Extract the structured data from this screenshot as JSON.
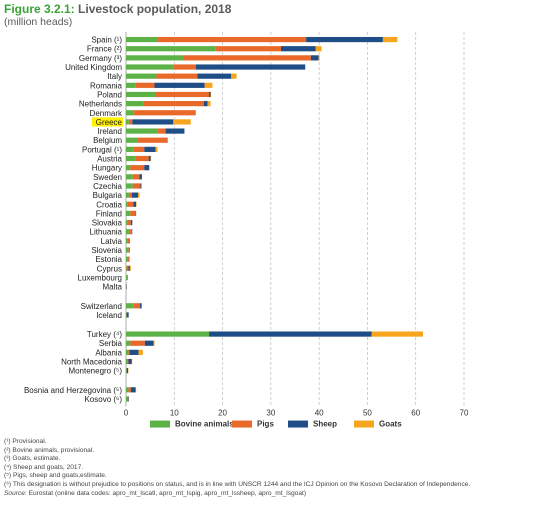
{
  "figure": {
    "number": "Figure 3.2.1:",
    "title": "Livestock population, 2018",
    "subtitle": "(million heads)"
  },
  "chart_data": {
    "type": "bar",
    "orientation": "horizontal",
    "stacked": true,
    "xlim": [
      0,
      70
    ],
    "xticks": [
      "0",
      "10",
      "20",
      "30",
      "40",
      "50",
      "60",
      "70"
    ],
    "grid": "vertical dashed",
    "legend_position": "bottom",
    "highlighted_category": "Greece",
    "categories": [
      "Spain (¹)",
      "France (²)",
      "Germany (³)",
      "United Kingdom",
      "Italy",
      "Romania",
      "Poland",
      "Netherlands",
      "Denmark",
      "Greece",
      "Ireland",
      "Belgium",
      "Portugal (¹)",
      "Austria",
      "Hungary",
      "Sweden",
      "Czechia",
      "Bulgaria",
      "Croatia",
      "Finland",
      "Slovakia",
      "Lithuania",
      "Latvia",
      "Slovenia",
      "Estonia",
      "Cyprus",
      "Luxembourg",
      "Malta",
      "Switzerland",
      "Iceland",
      "Turkey (⁴)",
      "Serbia",
      "Albania",
      "North Macedonia",
      "Montenegro (⁵)",
      "Bosnia and Herzegovina (⁵)",
      "Kosovo (⁶)"
    ],
    "group_sizes": [
      28,
      2,
      5,
      2
    ],
    "series": [
      {
        "name": "Bovine animals",
        "color": "#5cb247",
        "values": [
          6.5,
          18.6,
          11.9,
          9.9,
          6.3,
          2.0,
          6.2,
          3.7,
          1.5,
          0.6,
          6.6,
          2.4,
          1.6,
          1.9,
          0.9,
          1.4,
          1.4,
          0.6,
          0.4,
          0.9,
          0.4,
          0.6,
          0.4,
          0.5,
          0.3,
          0.1,
          0.2,
          0.05,
          1.5,
          0.1,
          17.2,
          0.9,
          0.5,
          0.3,
          0.1,
          0.5,
          0.3
        ]
      },
      {
        "name": "Pigs",
        "color": "#e8692a",
        "values": [
          30.8,
          13.5,
          26.4,
          4.6,
          8.5,
          3.9,
          11.0,
          12.4,
          12.8,
          0.7,
          1.6,
          6.1,
          2.2,
          2.8,
          2.9,
          1.4,
          1.6,
          0.6,
          1.1,
          1.1,
          0.6,
          0.6,
          0.3,
          0.2,
          0.3,
          0.4,
          0.1,
          0.04,
          1.4,
          0.05,
          0.0,
          3.0,
          0.2,
          0.2,
          0.05,
          0.5,
          0.05
        ]
      },
      {
        "name": "Sheep",
        "color": "#1f4e86",
        "values": [
          15.9,
          7.2,
          1.6,
          22.6,
          7.0,
          10.4,
          0.3,
          0.8,
          0.1,
          8.5,
          3.9,
          0.1,
          2.3,
          0.4,
          1.0,
          0.5,
          0.2,
          1.3,
          0.6,
          0.1,
          0.3,
          0.1,
          0.1,
          0.1,
          0.1,
          0.3,
          0.01,
          0.01,
          0.3,
          0.4,
          33.7,
          1.8,
          1.9,
          0.7,
          0.3,
          1.0,
          0.2
        ]
      },
      {
        "name": "Goats",
        "color": "#f7a51e",
        "values": [
          3.0,
          1.2,
          0.2,
          0.1,
          1.1,
          1.6,
          0.1,
          0.6,
          0.0,
          3.6,
          0.0,
          0.0,
          0.4,
          0.1,
          0.1,
          0.0,
          0.0,
          0.3,
          0.1,
          0.0,
          0.0,
          0.0,
          0.0,
          0.0,
          0.0,
          0.2,
          0.0,
          0.0,
          0.1,
          0.0,
          10.6,
          0.2,
          0.9,
          0.1,
          0.05,
          0.1,
          0.03
        ]
      }
    ]
  },
  "footnotes": [
    "(¹) Provisional.",
    "(²) Bovine animals, provisional.",
    "(³) Goats, estimate.",
    "(⁴) Sheep and goats, 2017.",
    "(⁵) Pigs, sheep and goats,estimate.",
    "(⁶) This designation is without prejudice to positions on status, and is in line with UNSCR 1244 and the ICJ Opinion on the Kosovo Declaration of Independence."
  ],
  "source": {
    "label": "Source:",
    "text": "Eurostat (online data codes: apro_mt_lscatl, apro_mt_lspig, apro_mt_lssheep, apro_mt_lsgoat)"
  }
}
